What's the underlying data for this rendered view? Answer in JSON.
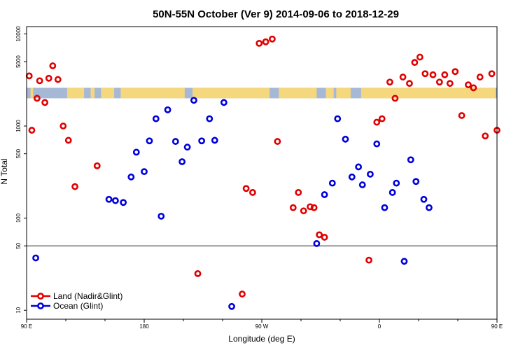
{
  "chart_data": {
    "type": "scatter",
    "title": "50N-55N October (Ver 9)   2014-09-06 to 2018-12-29",
    "xlabel": "Longitude (deg E)",
    "ylabel": "N Total",
    "xlim": [
      90,
      450
    ],
    "ylim": [
      8,
      12000
    ],
    "y_scale": "log",
    "x_ticks": [
      90,
      180,
      270,
      360,
      450
    ],
    "x_tick_labels": [
      "90 E",
      "180",
      "90 W",
      "0",
      "90 E"
    ],
    "x_minor_ticks": [
      120,
      150,
      210,
      240,
      300,
      330,
      390,
      420
    ],
    "y_ticks": [
      10,
      50,
      100,
      500,
      1000,
      5000,
      10000
    ],
    "y_tick_labels": [
      "10",
      "50",
      "100",
      "500",
      "1000",
      "5000",
      "10000"
    ],
    "reference_line_y": 50,
    "land_band_y": [
      2000,
      2600
    ],
    "colors": {
      "land": "#e00000",
      "ocean": "#0000dd",
      "band_ocean": "#a5b8d6",
      "band_land": "#f5d77e",
      "reference_line": "#555555"
    },
    "legend": {
      "position": "bottom-left",
      "entries": [
        "Land (Nadir&Glint)",
        "Ocean (Glint)"
      ]
    },
    "band_land_lon_ranges": [
      [
        93,
        95
      ],
      [
        121,
        134
      ],
      [
        139,
        142
      ],
      [
        147,
        157
      ],
      [
        162,
        211
      ],
      [
        217,
        276
      ],
      [
        283,
        312
      ],
      [
        319,
        325
      ],
      [
        327,
        338
      ],
      [
        346,
        449
      ]
    ],
    "series": [
      {
        "name": "Land (Nadir&Glint)",
        "points": [
          [
            92,
            3500
          ],
          [
            94,
            900
          ],
          [
            98,
            2000
          ],
          [
            100,
            3100
          ],
          [
            104,
            1800
          ],
          [
            107,
            3300
          ],
          [
            110,
            4500
          ],
          [
            114,
            3200
          ],
          [
            118,
            1000
          ],
          [
            122,
            700
          ],
          [
            127,
            220
          ],
          [
            144,
            370
          ],
          [
            221,
            25
          ],
          [
            255,
            15
          ],
          [
            258,
            210
          ],
          [
            263,
            190
          ],
          [
            268,
            7900
          ],
          [
            273,
            8200
          ],
          [
            278,
            8800
          ],
          [
            282,
            680
          ],
          [
            294,
            130
          ],
          [
            298,
            190
          ],
          [
            302,
            120
          ],
          [
            307,
            133
          ],
          [
            310,
            130
          ],
          [
            314,
            66
          ],
          [
            318,
            62
          ],
          [
            352,
            35
          ],
          [
            358,
            1100
          ],
          [
            362,
            1200
          ],
          [
            368,
            3000
          ],
          [
            372,
            2000
          ],
          [
            378,
            3400
          ],
          [
            383,
            2900
          ],
          [
            387,
            4900
          ],
          [
            391,
            5600
          ],
          [
            395,
            3700
          ],
          [
            401,
            3600
          ],
          [
            406,
            3000
          ],
          [
            410,
            3600
          ],
          [
            414,
            2900
          ],
          [
            418,
            3900
          ],
          [
            423,
            1300
          ],
          [
            428,
            2800
          ],
          [
            432,
            2600
          ],
          [
            437,
            3400
          ],
          [
            441,
            780
          ],
          [
            446,
            3700
          ],
          [
            450,
            900
          ]
        ]
      },
      {
        "name": "Ocean (Glint)",
        "points": [
          [
            97,
            37
          ],
          [
            153,
            160
          ],
          [
            158,
            155
          ],
          [
            164,
            148
          ],
          [
            170,
            280
          ],
          [
            174,
            520
          ],
          [
            180,
            320
          ],
          [
            184,
            690
          ],
          [
            189,
            1200
          ],
          [
            193,
            105
          ],
          [
            198,
            1500
          ],
          [
            204,
            680
          ],
          [
            209,
            410
          ],
          [
            213,
            590
          ],
          [
            218,
            1900
          ],
          [
            224,
            690
          ],
          [
            230,
            1200
          ],
          [
            234,
            700
          ],
          [
            241,
            1800
          ],
          [
            247,
            11
          ],
          [
            312,
            53
          ],
          [
            318,
            180
          ],
          [
            324,
            240
          ],
          [
            328,
            1200
          ],
          [
            334,
            720
          ],
          [
            339,
            280
          ],
          [
            344,
            360
          ],
          [
            347,
            230
          ],
          [
            353,
            300
          ],
          [
            358,
            640
          ],
          [
            364,
            130
          ],
          [
            370,
            190
          ],
          [
            373,
            240
          ],
          [
            379,
            34
          ],
          [
            384,
            430
          ],
          [
            388,
            250
          ],
          [
            394,
            160
          ],
          [
            398,
            130
          ]
        ]
      }
    ]
  }
}
